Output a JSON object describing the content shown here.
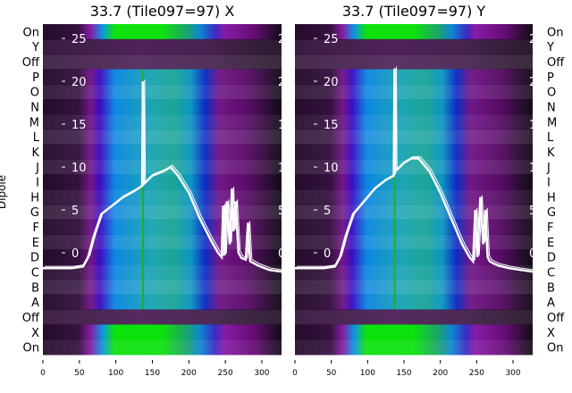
{
  "chart_data": [
    {
      "type": "heatmap",
      "title": "33.7 (Tile097=97) X",
      "ylabel": "Dipole",
      "row_labels": [
        "On",
        "Y",
        "Off",
        "P",
        "O",
        "N",
        "M",
        "L",
        "K",
        "J",
        "I",
        "H",
        "G",
        "F",
        "E",
        "D",
        "C",
        "B",
        "A",
        "Off",
        "X",
        "On"
      ],
      "xticks": [
        0,
        50,
        100,
        150,
        200,
        250,
        300
      ],
      "xlim": [
        0,
        327
      ],
      "overlay_yticks": [
        0,
        5,
        10,
        15,
        20,
        25
      ],
      "overlay_ylim": [
        -2.5,
        26.5
      ],
      "overlay_line": {
        "x": [
          0,
          40,
          55,
          62,
          70,
          80,
          95,
          110,
          125,
          136,
          137,
          138,
          150,
          165,
          175,
          185,
          200,
          215,
          230,
          240,
          245,
          247,
          249,
          252,
          256,
          259,
          261,
          264,
          268,
          272,
          278,
          281,
          284,
          295,
          310,
          327
        ],
        "y": [
          -1.8,
          -1.8,
          -1.6,
          -0.5,
          2,
          4.5,
          5.5,
          6.5,
          7.2,
          7.8,
          20,
          8,
          9,
          9.5,
          10,
          9,
          7,
          4,
          1.5,
          0,
          -0.5,
          5.5,
          -0.3,
          6,
          1,
          7.5,
          2.5,
          6,
          0,
          -0.6,
          -0.8,
          3.5,
          -1,
          -1.5,
          -2,
          -2.2
        ]
      }
    },
    {
      "type": "heatmap",
      "title": "33.7 (Tile097=97) Y",
      "row_labels": [
        "On",
        "Y",
        "Off",
        "P",
        "O",
        "N",
        "M",
        "L",
        "K",
        "J",
        "I",
        "H",
        "G",
        "F",
        "E",
        "D",
        "C",
        "B",
        "A",
        "Off",
        "X",
        "On"
      ],
      "xticks": [
        0,
        50,
        100,
        150,
        200,
        250,
        300
      ],
      "xlim": [
        0,
        327
      ],
      "overlay_yticks": [
        0,
        5,
        10,
        15,
        20,
        25
      ],
      "overlay_ylim": [
        -2.5,
        26.5
      ],
      "overlay_line": {
        "x": [
          0,
          40,
          55,
          62,
          70,
          80,
          95,
          110,
          125,
          136,
          137,
          138,
          150,
          160,
          170,
          185,
          200,
          215,
          230,
          240,
          245,
          248,
          251,
          255,
          259,
          262,
          265,
          268,
          272,
          280,
          295,
          310,
          327
        ],
        "y": [
          -1.8,
          -1.8,
          -1.6,
          -0.5,
          2,
          4.5,
          6,
          7.5,
          8.5,
          9,
          21.5,
          9.5,
          10.5,
          11,
          11,
          9.5,
          7,
          4,
          1,
          -0.5,
          -1,
          5,
          -0.5,
          6.5,
          1,
          5,
          -0.5,
          -1,
          -1.2,
          -1.5,
          -1.8,
          -2,
          -2.2
        ]
      }
    }
  ]
}
